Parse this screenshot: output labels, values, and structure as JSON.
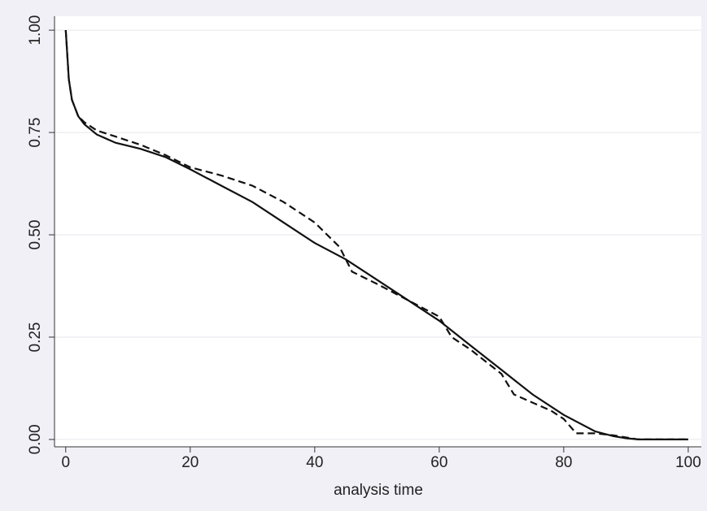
{
  "chart_data": {
    "type": "line",
    "x_label": "analysis time",
    "xlim": [
      -1.8,
      102.1
    ],
    "ylim": [
      -0.018,
      1.034
    ],
    "xticks": [
      0,
      20,
      40,
      60,
      80,
      100
    ],
    "yticks": [
      {
        "value": 0,
        "label": "0.00"
      },
      {
        "value": 0.25,
        "label": "0.25"
      },
      {
        "value": 0.5,
        "label": "0.50"
      },
      {
        "value": 0.75,
        "label": "0.75"
      },
      {
        "value": 1,
        "label": "1.00"
      }
    ],
    "grid": true,
    "series": [
      {
        "color": "#111111",
        "dash": false,
        "x": [
          0,
          0.5,
          1,
          2,
          3,
          5,
          8,
          12,
          16,
          20,
          25,
          30,
          35,
          40,
          45,
          50,
          55,
          60,
          65,
          70,
          75,
          80,
          85,
          88,
          90,
          92,
          95,
          100
        ],
        "values": [
          1.0,
          0.88,
          0.83,
          0.79,
          0.77,
          0.745,
          0.725,
          0.71,
          0.69,
          0.66,
          0.62,
          0.58,
          0.53,
          0.48,
          0.44,
          0.39,
          0.34,
          0.29,
          0.23,
          0.17,
          0.11,
          0.06,
          0.02,
          0.008,
          0.003,
          0,
          0,
          0
        ]
      },
      {
        "color": "#111111",
        "dash": true,
        "x": [
          0,
          0.5,
          1,
          2,
          3,
          5,
          8,
          12,
          16,
          20,
          25,
          30,
          35,
          40,
          44,
          46,
          50,
          55,
          60,
          62,
          65,
          70,
          72,
          75,
          78,
          80,
          82,
          85,
          88,
          90,
          92,
          100
        ],
        "values": [
          1.0,
          0.88,
          0.83,
          0.79,
          0.775,
          0.755,
          0.74,
          0.72,
          0.695,
          0.665,
          0.645,
          0.62,
          0.58,
          0.53,
          0.47,
          0.41,
          0.38,
          0.34,
          0.3,
          0.25,
          0.22,
          0.16,
          0.11,
          0.09,
          0.07,
          0.05,
          0.015,
          0.015,
          0.01,
          0.005,
          0,
          0
        ]
      }
    ]
  }
}
